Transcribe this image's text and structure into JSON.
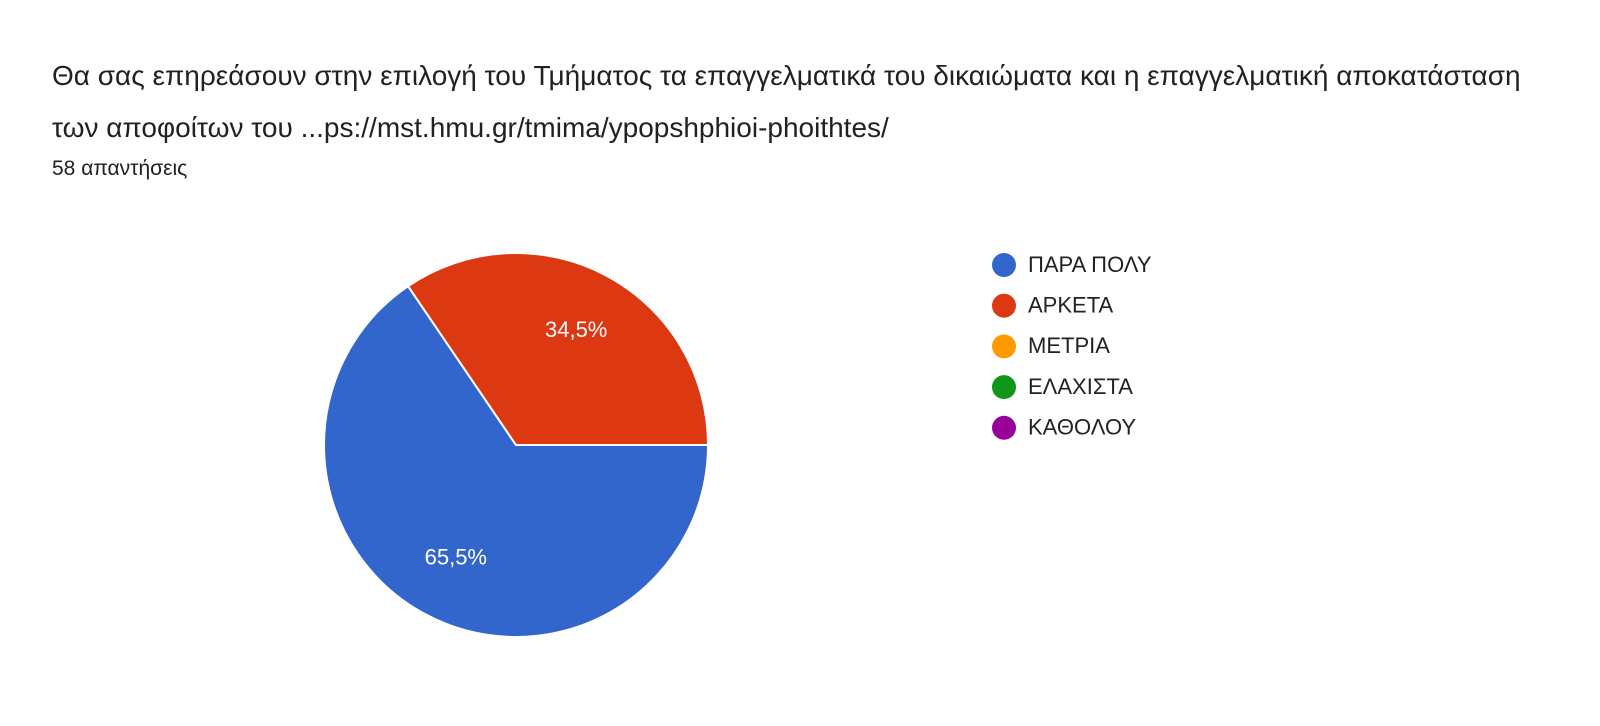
{
  "chart_data": {
    "type": "pie",
    "title": "Θα σας επηρεάσουν στην επιλογή του Τμήματος τα επαγγελματικά του δικαιώματα και η επαγγελματική αποκατάσταση των αποφοίτων του ...ps://mst.hmu.gr/tmima/ypopshphioi-phoithtes/",
    "subtitle": "58 απαντήσεις",
    "categories": [
      "ΠΑΡΑ ΠΟΛΥ",
      "ΑΡΚΕΤΑ",
      "ΜΕΤΡΙΑ",
      "ΕΛΑΧΙΣΤΑ",
      "ΚΑΘΟΛΟΥ"
    ],
    "values": [
      65.5,
      34.5,
      0,
      0,
      0
    ],
    "value_labels": [
      "65,5%",
      "34,5%",
      null,
      null,
      null
    ],
    "colors": [
      "#3366cc",
      "#dc3912",
      "#ff9900",
      "#109618",
      "#990099"
    ],
    "legend": "right"
  }
}
